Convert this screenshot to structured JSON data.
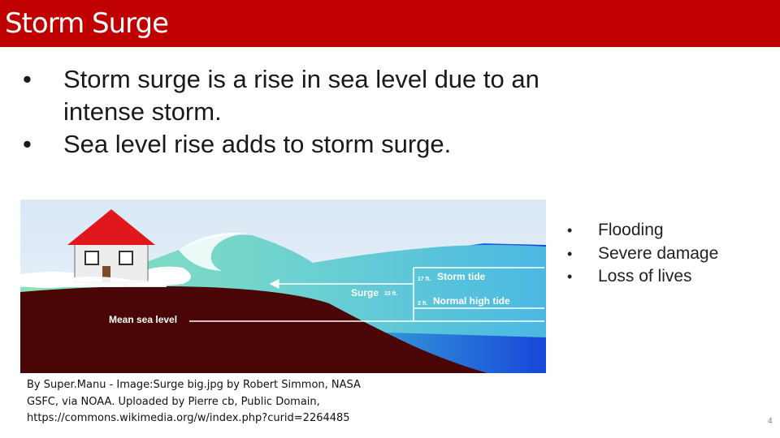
{
  "title": "Storm Surge",
  "bullets": [
    "Storm surge is a rise in sea level due to an intense storm.",
    "Sea level rise adds to storm surge."
  ],
  "diagram": {
    "storm_tide_value": "17 ft.",
    "storm_tide_label": "Storm tide",
    "surge_label": "Surge",
    "surge_value": "15 ft.",
    "normal_tide_value": "2 ft.",
    "normal_tide_label": "Normal high tide",
    "mean_sea_level_label": "Mean sea level"
  },
  "side_bullets": [
    "Flooding",
    "Severe damage",
    "Loss of lives"
  ],
  "credit_lines": [
    "By Super.Manu - Image:Surge big.jpg by Robert Simmon, NASA",
    "GSFC, via NOAA. Uploaded by Pierre cb, Public Domain,",
    "https://commons.wikimedia.org/w/index.php?curid=2264485"
  ],
  "page_number": "4",
  "colors": {
    "title_bar": "#c00000",
    "land": "#4a0606",
    "sea_deep": "#1f5fe8",
    "surge_water": "#7cd8c0",
    "roof": "#e0181e"
  }
}
